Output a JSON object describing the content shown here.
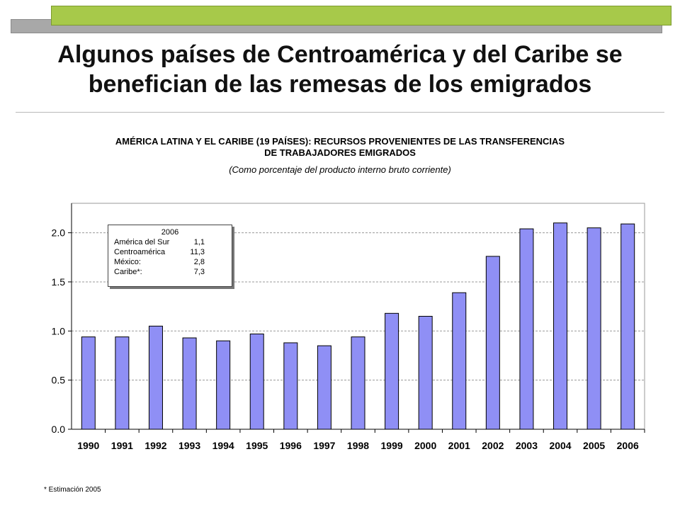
{
  "slide": {
    "title_line1": "Algunos países de Centroamérica y del Caribe se",
    "title_line2": "benefician de las remesas de los emigrados"
  },
  "chart_data": {
    "type": "bar",
    "title_line1": "AMÉRICA LATINA Y EL CARIBE (19 PAÍSES): RECURSOS PROVENIENTES DE LAS TRANSFERENCIAS",
    "title_line2": "DE TRABAJADORES EMIGRADOS",
    "subtitle": "(Como porcentaje del producto interno bruto corriente)",
    "categories": [
      "1990",
      "1991",
      "1992",
      "1993",
      "1994",
      "1995",
      "1996",
      "1997",
      "1998",
      "1999",
      "2000",
      "2001",
      "2002",
      "2003",
      "2004",
      "2005",
      "2006"
    ],
    "values": [
      0.94,
      0.94,
      1.05,
      0.93,
      0.9,
      0.97,
      0.88,
      0.85,
      0.94,
      1.18,
      1.15,
      1.39,
      1.76,
      2.04,
      2.1,
      2.05,
      2.09
    ],
    "ylim": [
      0,
      2.3
    ],
    "yticks": [
      "0.0",
      "0.5",
      "1.0",
      "1.5",
      "2.0"
    ],
    "grid": true,
    "bar_color": "#8f8ff5",
    "annotation": {
      "year": "2006",
      "rows": [
        {
          "label": "América del Sur",
          "value": "1,1"
        },
        {
          "label": "Centroamérica",
          "value": "11,3"
        },
        {
          "label": "México:",
          "value": "2,8"
        },
        {
          "label": "Caribe*:",
          "value": "7,3"
        }
      ]
    },
    "footnote": "* Estimación 2005"
  }
}
